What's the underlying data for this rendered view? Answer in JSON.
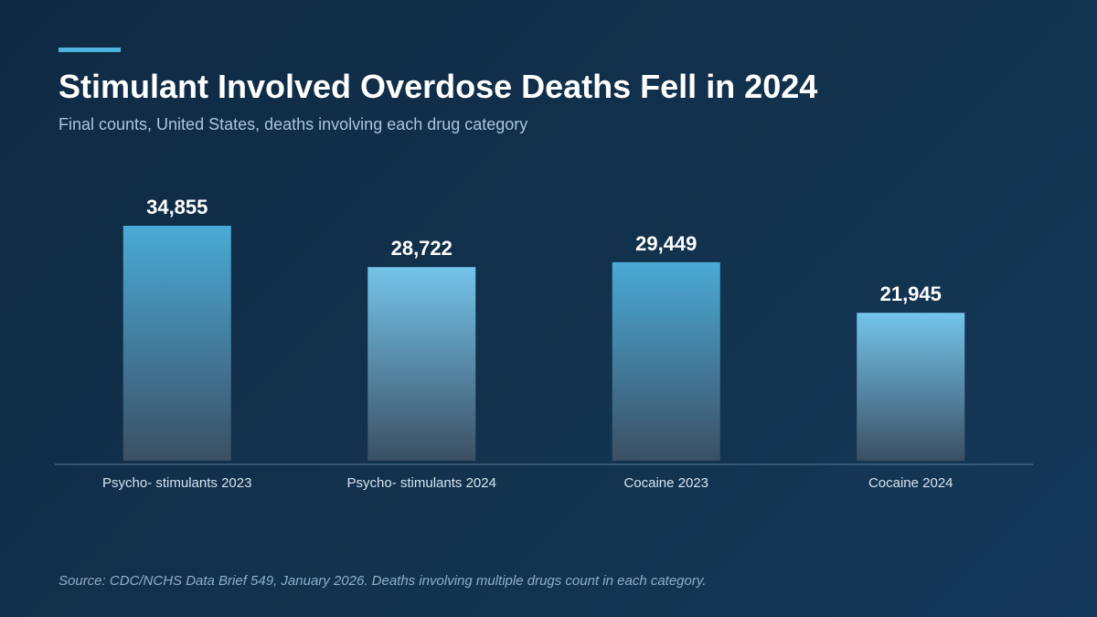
{
  "header": {
    "title": "Stimulant Involved Overdose Deaths Fell in 2024",
    "subtitle": "Final counts, United States, deaths involving each drug category"
  },
  "footer": {
    "source": "Source: CDC/NCHS Data Brief 549, January 2026. Deaths involving multiple drugs count in each category."
  },
  "colors": {
    "accent": "#4fb3e0",
    "bar_2023_top": "#4aaad6",
    "bar_2024_top": "#74c4ea",
    "bar_bottom": "#3b4f63",
    "axis": "#5b7a94",
    "tick_label": "#d6e4ef",
    "value_label": "#ffffff"
  },
  "chart_data": {
    "type": "bar",
    "title": "Stimulant Involved Overdose Deaths Fell in 2024",
    "subtitle": "Final counts, United States, deaths involving each drug category",
    "categories": [
      "Psycho- stimulants 2023",
      "Psycho- stimulants 2024",
      "Cocaine 2023",
      "Cocaine 2024"
    ],
    "values": [
      34855,
      28722,
      29449,
      21945
    ],
    "value_labels": [
      "34,855",
      "28,722",
      "29,449",
      "21,945"
    ],
    "xlabel": "",
    "ylabel": "",
    "ylim": [
      0,
      34855
    ],
    "grid": false,
    "legend": "none"
  }
}
